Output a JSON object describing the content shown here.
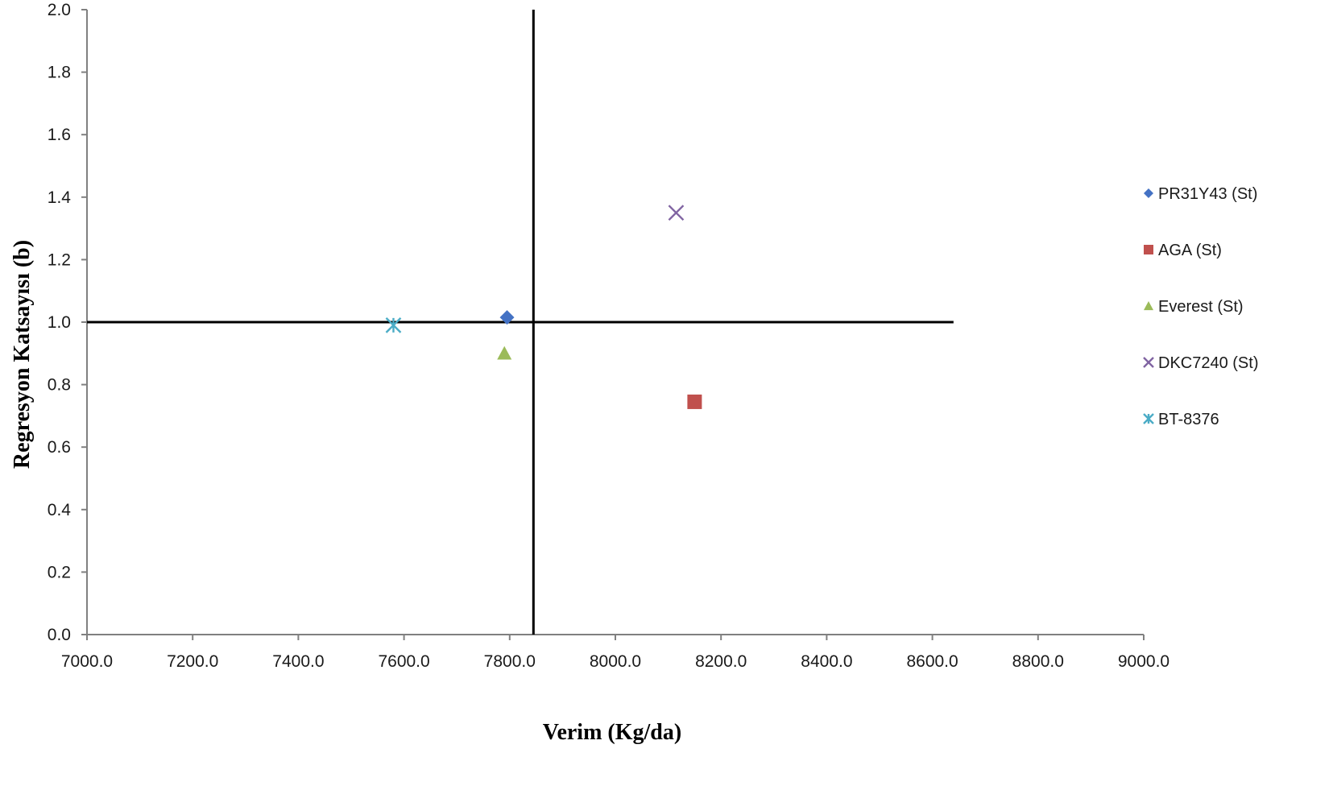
{
  "chart_data": {
    "type": "scatter",
    "xlabel": "Verim (Kg/da)",
    "ylabel": "Regresyon Katsayısı (b)",
    "xlim": [
      7000,
      9000
    ],
    "ylim": [
      0,
      2
    ],
    "x_ticks": [
      "7000.0",
      "7200.0",
      "7400.0",
      "7600.0",
      "7800.0",
      "8000.0",
      "8200.0",
      "8400.0",
      "8600.0",
      "8800.0",
      "9000.0"
    ],
    "y_ticks": [
      "0.0",
      "0.2",
      "0.4",
      "0.6",
      "0.8",
      "1.0",
      "1.2",
      "1.4",
      "1.6",
      "1.8",
      "2.0"
    ],
    "grid": false,
    "legend_position": "right",
    "reference_lines": {
      "x_mean": 7845,
      "y": 1.0,
      "y_line_x_end": 8640
    },
    "series": [
      {
        "name": "PR31Y43 (St)",
        "marker": "diamond",
        "color": "#4472C4",
        "x": 7795,
        "y": 1.015
      },
      {
        "name": "AGA (St)",
        "marker": "square",
        "color": "#C0504D",
        "x": 8150,
        "y": 0.745
      },
      {
        "name": "Everest (St)",
        "marker": "triangle",
        "color": "#9BBB59",
        "x": 7790,
        "y": 0.9
      },
      {
        "name": "DKC7240 (St)",
        "marker": "x",
        "color": "#8064A2",
        "x": 8115,
        "y": 1.35
      },
      {
        "name": "BT-8376",
        "marker": "star",
        "color": "#4BACC6",
        "x": 7580,
        "y": 0.99
      }
    ]
  }
}
